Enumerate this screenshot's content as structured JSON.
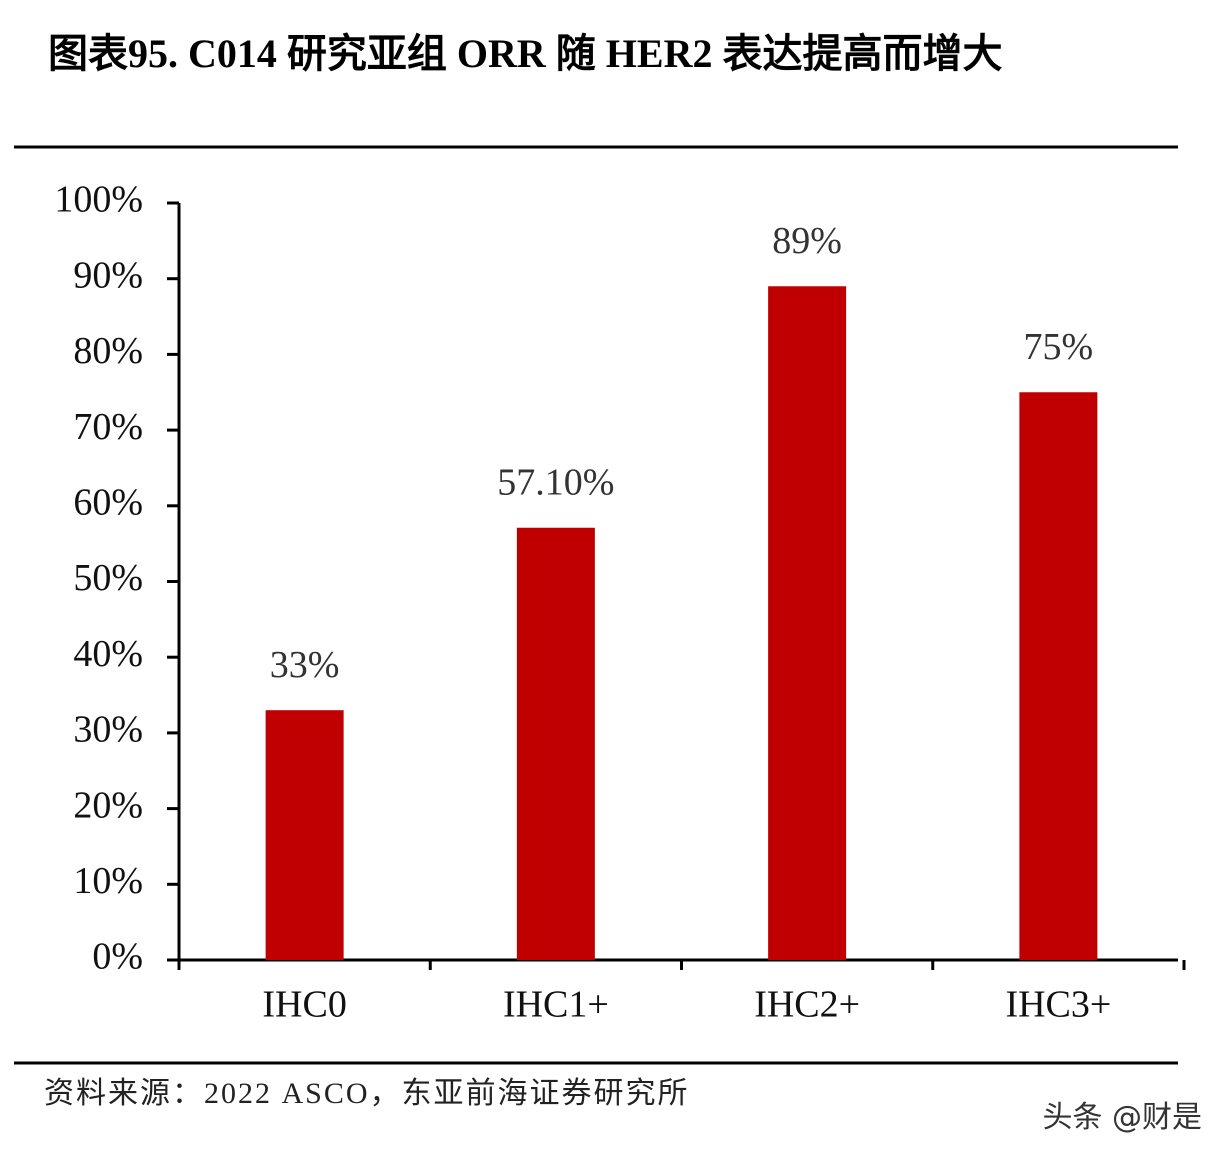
{
  "chart_data": {
    "type": "bar",
    "title": "图表95. C014 研究亚组 ORR 随 HER2 表达提高而增大",
    "categories": [
      "IHC0",
      "IHC1+",
      "IHC2+",
      "IHC3+"
    ],
    "values": [
      33,
      57.1,
      89,
      75
    ],
    "value_labels": [
      "33%",
      "57.10%",
      "89%",
      "75%"
    ],
    "color": "#c00000",
    "ylim": [
      0,
      100
    ],
    "yticks": [
      {
        "value": 0,
        "label": "0%"
      },
      {
        "value": 10,
        "label": "10%"
      },
      {
        "value": 20,
        "label": "20%"
      },
      {
        "value": 30,
        "label": "30%"
      },
      {
        "value": 40,
        "label": "40%"
      },
      {
        "value": 50,
        "label": "50%"
      },
      {
        "value": 60,
        "label": "60%"
      },
      {
        "value": 70,
        "label": "70%"
      },
      {
        "value": 80,
        "label": "80%"
      },
      {
        "value": 90,
        "label": "90%"
      },
      {
        "value": 100,
        "label": "100%"
      }
    ],
    "grid": false,
    "source": "资料来源：2022 ASCO，东亚前海证券研究所",
    "watermark": "头条 @财是"
  }
}
